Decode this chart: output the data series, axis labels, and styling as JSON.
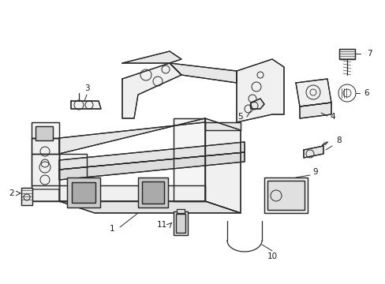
{
  "background_color": "#ffffff",
  "line_color": "#2a2a2a",
  "line_width": 0.9,
  "label_color": "#1a1a1a",
  "label_fontsize": 7.5,
  "fig_width": 4.89,
  "fig_height": 3.6,
  "dpi": 100
}
